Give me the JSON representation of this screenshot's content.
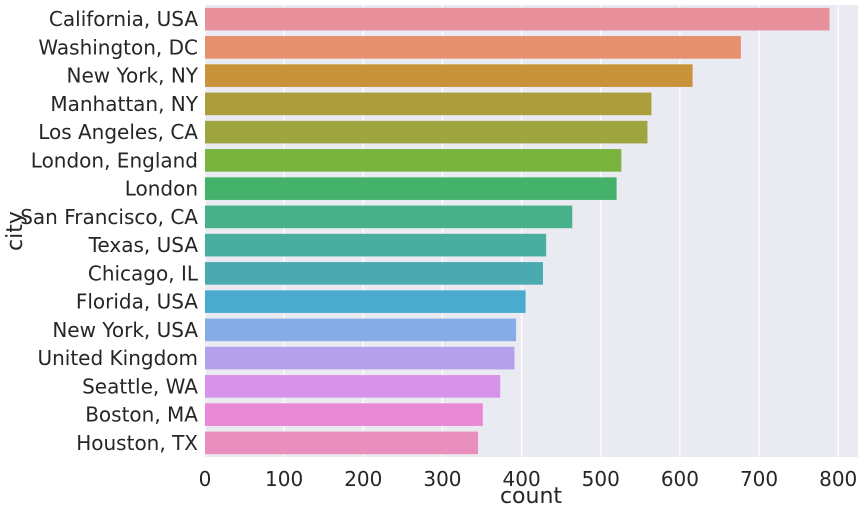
{
  "chart_data": {
    "type": "bar",
    "orientation": "horizontal",
    "xlabel": "count",
    "ylabel": "city",
    "xlim": [
      0,
      825
    ],
    "xticks": [
      "0",
      "100",
      "200",
      "300",
      "400",
      "500",
      "600",
      "700",
      "800"
    ],
    "grid": true,
    "legend": "none",
    "categories": [
      "California, USA",
      "Washington, DC",
      "New York, NY",
      "Manhattan, NY",
      "Los Angeles, CA",
      "London, England",
      "London",
      "San Francisco, CA",
      "Texas, USA",
      "Chicago, IL",
      "Florida, USA",
      "New York, USA",
      "United Kingdom",
      "Seattle, WA",
      "Boston, MA",
      "Houston, TX"
    ],
    "values": [
      789,
      677,
      616,
      564,
      559,
      526,
      520,
      464,
      431,
      427,
      405,
      393,
      391,
      373,
      351,
      345
    ],
    "colors": [
      "#e8909c",
      "#e6906d",
      "#c99439",
      "#ab9d3b",
      "#9ea53f",
      "#78b43e",
      "#44b26a",
      "#48b18a",
      "#48ae9f",
      "#4aaab0",
      "#4aabcf",
      "#86ade6",
      "#b5a0ec",
      "#d792ea",
      "#e789d5",
      "#ea8fbd"
    ],
    "background_color": "#eaeaf2"
  }
}
